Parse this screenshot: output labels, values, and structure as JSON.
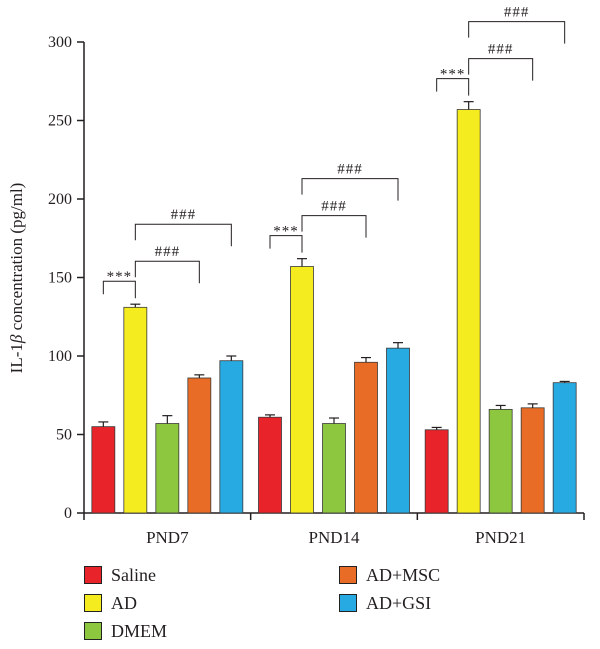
{
  "chart_data": {
    "type": "bar",
    "ylabel_prefix": "IL-1",
    "ylabel_symbol": "β",
    "ylabel_suffix": " concentration (pg/ml)",
    "xlabel": "",
    "ylim": [
      0,
      300
    ],
    "yticks": [
      "0",
      "50",
      "100",
      "150",
      "200",
      "250",
      "300"
    ],
    "categories": [
      "PND7",
      "PND14",
      "PND21"
    ],
    "series": [
      {
        "name": "Saline",
        "color": "#e8232a",
        "values": [
          55,
          61,
          53
        ],
        "errors": [
          3,
          1.5,
          1.5
        ]
      },
      {
        "name": "AD",
        "color": "#f5ec1f",
        "values": [
          131,
          157,
          257
        ],
        "errors": [
          2,
          5,
          5
        ]
      },
      {
        "name": "DMEM",
        "color": "#8dc63f",
        "values": [
          57,
          57,
          66
        ],
        "errors": [
          5,
          3.5,
          2.5
        ]
      },
      {
        "name": "AD+MSC",
        "color": "#e86c25",
        "values": [
          86,
          96,
          67
        ],
        "errors": [
          2,
          3,
          2.5
        ]
      },
      {
        "name": "AD+GSI",
        "color": "#27aae1",
        "values": [
          97,
          105,
          83
        ],
        "errors": [
          3,
          3.5,
          0.8
        ]
      }
    ],
    "significance": [
      {
        "group": 0,
        "from": 0,
        "to": 1,
        "label": "***"
      },
      {
        "group": 0,
        "from": 1,
        "to": 3,
        "label": "###"
      },
      {
        "group": 0,
        "from": 1,
        "to": 4,
        "label": "###"
      },
      {
        "group": 1,
        "from": 0,
        "to": 1,
        "label": "***"
      },
      {
        "group": 1,
        "from": 1,
        "to": 3,
        "label": "###"
      },
      {
        "group": 1,
        "from": 1,
        "to": 4,
        "label": "###"
      },
      {
        "group": 2,
        "from": 0,
        "to": 1,
        "label": "***"
      },
      {
        "group": 2,
        "from": 1,
        "to": 3,
        "label": "###"
      },
      {
        "group": 2,
        "from": 1,
        "to": 4,
        "label": "###"
      }
    ],
    "grid": false,
    "legend_position": "bottom"
  }
}
